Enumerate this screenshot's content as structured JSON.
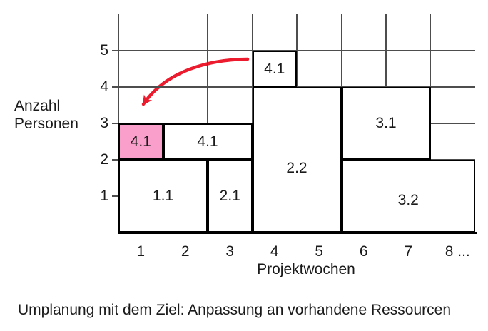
{
  "chart_data": {
    "type": "bar",
    "subtype": "project-resource-plan-blocks",
    "xlabel": "Projektwochen",
    "ylabel_line1": "Anzahl",
    "ylabel_line2": "Personen",
    "x_ticks": [
      "1",
      "2",
      "3",
      "4",
      "5",
      "6",
      "7",
      "8 ..."
    ],
    "y_ticks": [
      {
        "label": "5",
        "value": 5
      },
      {
        "label": "4",
        "value": 4
      },
      {
        "label": "3",
        "value": 3
      },
      {
        "label": "2",
        "value": 2
      },
      {
        "label": "1",
        "value": 1
      }
    ],
    "xlim": [
      0,
      8
    ],
    "ylim": [
      0,
      6
    ],
    "grid": true,
    "blocks": [
      {
        "label": "1.1",
        "week_start": 0,
        "week_end": 2,
        "persons_from": 0,
        "persons_to": 2,
        "highlight": false,
        "label_dy": 0
      },
      {
        "label": "2.1",
        "week_start": 2,
        "week_end": 3,
        "persons_from": 0,
        "persons_to": 2,
        "highlight": false,
        "label_dy": 0
      },
      {
        "label": "2.2",
        "week_start": 3,
        "week_end": 5,
        "persons_from": 0,
        "persons_to": 4,
        "highlight": false,
        "label_dy": 12
      },
      {
        "label": "3.2",
        "week_start": 5,
        "week_end": 8,
        "persons_from": 0,
        "persons_to": 2,
        "highlight": false,
        "label_dy": 6
      },
      {
        "label": "3.1",
        "week_start": 5,
        "week_end": 7,
        "persons_from": 2,
        "persons_to": 4,
        "highlight": false,
        "label_dy": 0
      },
      {
        "label": "4.1",
        "week_start": 1,
        "week_end": 3,
        "persons_from": 2,
        "persons_to": 3,
        "highlight": false,
        "label_dy": 0
      },
      {
        "label": "4.1",
        "week_start": 0,
        "week_end": 1,
        "persons_from": 2,
        "persons_to": 3,
        "highlight": true,
        "label_dy": 0
      },
      {
        "label": "4.1",
        "week_start": 3,
        "week_end": 4,
        "persons_from": 4,
        "persons_to": 5,
        "highlight": false,
        "label_dy": 0
      }
    ],
    "annotation_arrow": {
      "meaning": "task 4.1 moved from week 4 / persons 4-5 to week 1 / persons 2-3",
      "color": "#EC1C2E"
    },
    "colors": {
      "highlight_pink": "#FA9ECB",
      "arrow_red": "#EC1C2E",
      "grid_gray": "#4d4d4d",
      "block_border": "#000000",
      "text": "#1a1a1a",
      "background": "#ffffff"
    }
  },
  "caption": {
    "text": "Umplanung mit dem Ziel: Anpassung an vorhandene Ressourcen"
  }
}
